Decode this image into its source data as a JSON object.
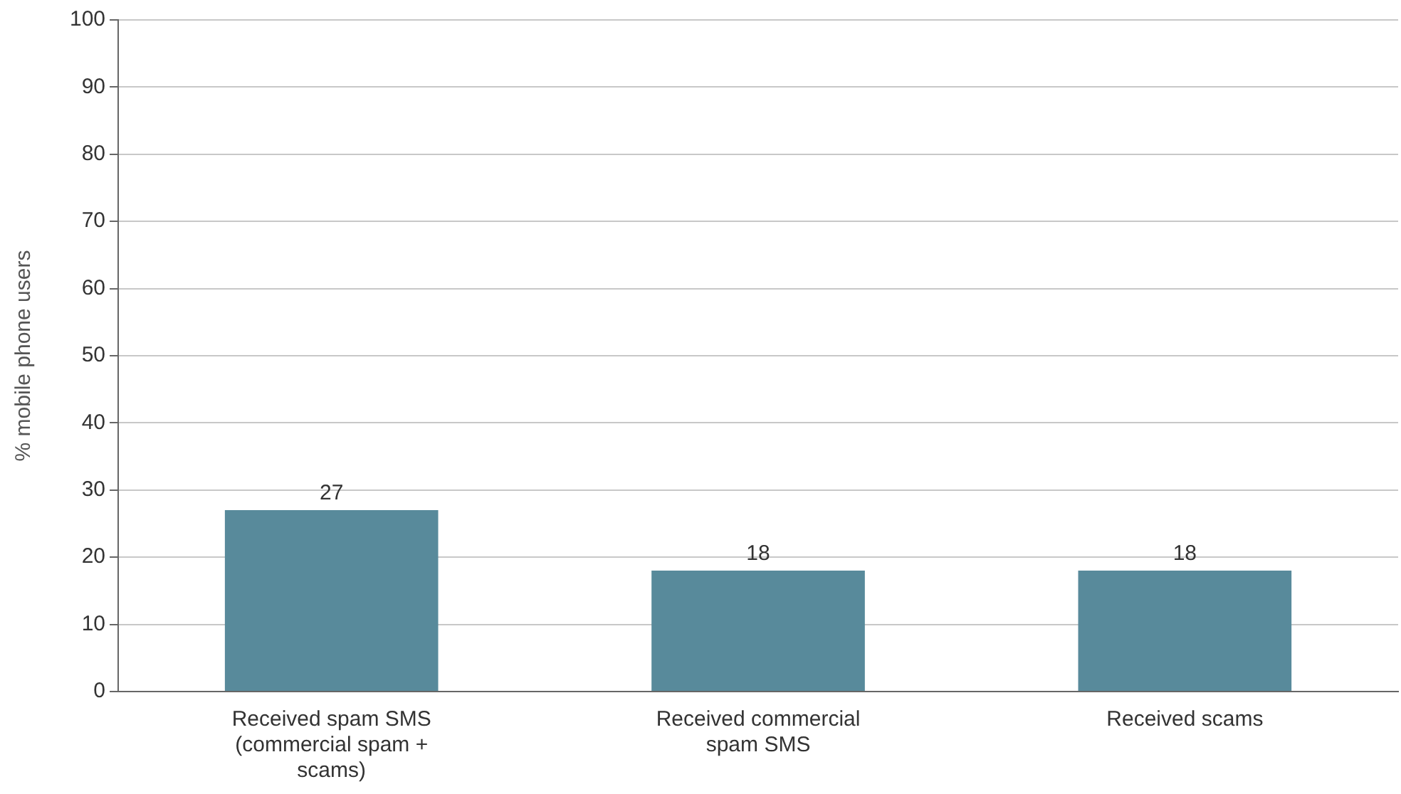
{
  "chart_data": {
    "type": "bar",
    "ylabel": "% mobile phone users",
    "categories": [
      "Received spam SMS (commercial spam + scams)",
      "Received commercial spam SMS",
      "Received scams"
    ],
    "values": [
      27,
      18,
      18
    ],
    "color": "#588a9b",
    "ylim": [
      0,
      100
    ],
    "yticks": [
      0,
      10,
      20,
      30,
      40,
      50,
      60,
      70,
      80,
      90,
      100
    ],
    "grid": "y",
    "data_labels": true,
    "legend": false
  }
}
